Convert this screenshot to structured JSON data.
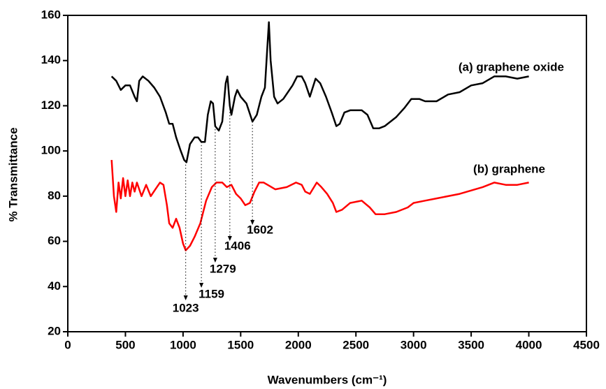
{
  "chart_data": {
    "type": "line",
    "xlabel": "Wavenumbers (cm⁻¹)",
    "ylabel": "% Transmittance",
    "xlim": [
      0,
      4500
    ],
    "xticks": [
      0,
      500,
      1000,
      1500,
      2000,
      2500,
      3000,
      3500,
      4000,
      4500
    ],
    "ylim": [
      20,
      160
    ],
    "yticks": [
      20,
      40,
      60,
      80,
      100,
      120,
      140,
      160
    ],
    "peaks": [
      1023,
      1159,
      1279,
      1406,
      1602
    ],
    "series": [
      {
        "name": "(a) graphene oxide",
        "color": "#000000",
        "x": [
          380,
          420,
          460,
          500,
          540,
          580,
          600,
          620,
          650,
          700,
          750,
          800,
          850,
          880,
          910,
          940,
          980,
          1010,
          1030,
          1060,
          1100,
          1130,
          1159,
          1190,
          1215,
          1240,
          1260,
          1279,
          1310,
          1340,
          1370,
          1385,
          1406,
          1420,
          1450,
          1470,
          1500,
          1550,
          1602,
          1640,
          1680,
          1710,
          1730,
          1745,
          1760,
          1790,
          1820,
          1870,
          1950,
          1990,
          2030,
          2060,
          2100,
          2150,
          2190,
          2240,
          2290,
          2330,
          2360,
          2400,
          2450,
          2550,
          2600,
          2650,
          2700,
          2750,
          2850,
          2920,
          2980,
          3050,
          3100,
          3200,
          3300,
          3400,
          3500,
          3600,
          3700,
          3800,
          3900,
          4000
        ],
        "values": [
          133,
          131,
          127,
          129,
          129,
          124,
          122,
          131,
          133,
          131,
          128,
          124,
          117,
          112,
          112,
          106,
          100,
          96,
          95,
          103,
          106,
          106,
          104,
          104,
          116,
          122,
          121,
          111,
          109,
          113,
          130,
          133,
          120,
          116,
          124,
          127,
          124,
          121,
          113,
          116,
          124,
          128,
          145,
          157,
          140,
          124,
          121,
          123,
          129,
          133,
          133,
          130,
          124,
          132,
          130,
          124,
          117,
          111,
          112,
          117,
          118,
          118,
          116,
          110,
          110,
          111,
          115,
          119,
          123,
          123,
          122,
          122,
          125,
          126,
          129,
          130,
          133,
          133,
          132,
          133
        ]
      },
      {
        "name": "(b) graphene",
        "color": "#ff0000",
        "x": [
          380,
          400,
          420,
          440,
          460,
          480,
          500,
          520,
          540,
          560,
          580,
          600,
          640,
          680,
          720,
          760,
          800,
          830,
          860,
          880,
          910,
          940,
          970,
          1000,
          1023,
          1060,
          1100,
          1150,
          1200,
          1250,
          1290,
          1340,
          1380,
          1420,
          1460,
          1500,
          1540,
          1580,
          1620,
          1660,
          1700,
          1800,
          1900,
          1980,
          2030,
          2060,
          2100,
          2160,
          2200,
          2250,
          2300,
          2330,
          2380,
          2450,
          2550,
          2620,
          2670,
          2750,
          2850,
          2950,
          3000,
          3100,
          3200,
          3400,
          3600,
          3700,
          3800,
          3900,
          4000
        ],
        "values": [
          96,
          80,
          73,
          86,
          79,
          88,
          80,
          87,
          80,
          86,
          82,
          86,
          80,
          85,
          80,
          83,
          86,
          85,
          76,
          68,
          66,
          70,
          66,
          59,
          56,
          58,
          62,
          68,
          78,
          84,
          86,
          86,
          84,
          85,
          81,
          79,
          76,
          77,
          82,
          86,
          86,
          83,
          84,
          86,
          85,
          82,
          81,
          86,
          84,
          81,
          77,
          73,
          74,
          77,
          78,
          75,
          72,
          72,
          73,
          75,
          77,
          78,
          79,
          81,
          84,
          86,
          85,
          85,
          86
        ]
      }
    ]
  }
}
